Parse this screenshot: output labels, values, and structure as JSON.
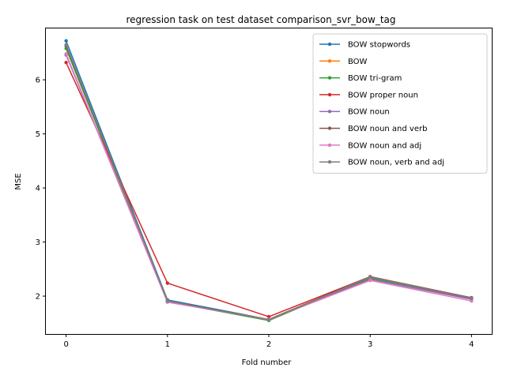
{
  "chart_data": {
    "type": "line",
    "title": "regression task on test dataset comparison_svr_bow_tag",
    "xlabel": "Fold number",
    "ylabel": "MSE",
    "x": [
      0,
      1,
      2,
      3,
      4
    ],
    "xticks": [
      "0",
      "1",
      "2",
      "3",
      "4"
    ],
    "yticks": [
      "2",
      "3",
      "4",
      "5",
      "6"
    ],
    "xlim": [
      -0.2,
      4.2
    ],
    "ylim": [
      1.3,
      6.95
    ],
    "grid": false,
    "legend_position": "top-right",
    "series": [
      {
        "name": "BOW stopwords",
        "color": "#1f77b4",
        "values": [
          6.72,
          1.93,
          1.57,
          2.35,
          1.97
        ]
      },
      {
        "name": "BOW",
        "color": "#ff7f0e",
        "values": [
          6.63,
          1.91,
          1.56,
          2.34,
          1.96
        ]
      },
      {
        "name": "BOW tri-gram",
        "color": "#2ca02c",
        "values": [
          6.58,
          1.9,
          1.55,
          2.33,
          1.96
        ]
      },
      {
        "name": "BOW proper noun",
        "color": "#d62728",
        "values": [
          6.32,
          2.24,
          1.62,
          2.36,
          1.95
        ]
      },
      {
        "name": "BOW noun",
        "color": "#9467bd",
        "values": [
          6.46,
          1.89,
          1.57,
          2.31,
          1.94
        ]
      },
      {
        "name": "BOW noun and verb",
        "color": "#8c564b",
        "values": [
          6.63,
          1.91,
          1.57,
          2.36,
          1.97
        ]
      },
      {
        "name": "BOW noun and adj",
        "color": "#e377c2",
        "values": [
          6.48,
          1.89,
          1.57,
          2.29,
          1.91
        ]
      },
      {
        "name": "BOW noun, verb and adj",
        "color": "#7f7f7f",
        "values": [
          6.65,
          1.91,
          1.56,
          2.35,
          1.96
        ]
      }
    ]
  }
}
